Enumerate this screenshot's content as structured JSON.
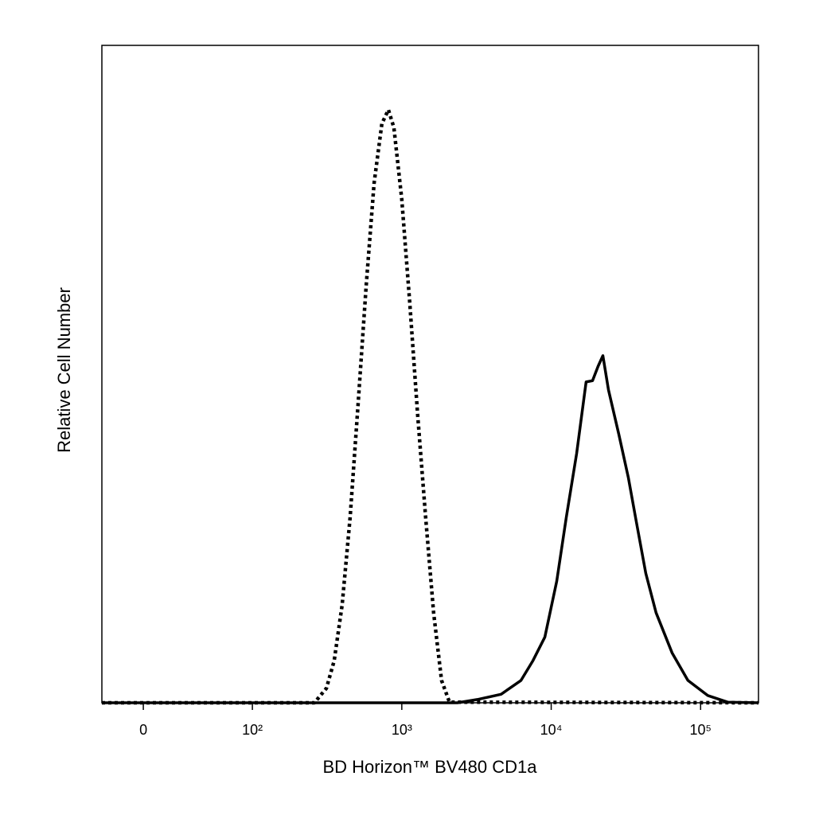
{
  "chart_data": {
    "type": "line",
    "x_label": "BD Horizon™ BV480 CD1a",
    "y_label": "Relative Cell Number",
    "xscale": "biexponential",
    "xlim": [
      -38,
      244000
    ],
    "xticks": [
      0,
      {
        "value": 100,
        "label": "10²"
      },
      {
        "value": 1000,
        "label": "10³"
      },
      {
        "value": 10000,
        "label": "10⁴"
      },
      {
        "value": 100000,
        "label": "10⁵"
      }
    ],
    "ylim": [
      0,
      100
    ],
    "series": [
      {
        "color": "#000000",
        "dash": "dotted",
        "x": [
          -38,
          260,
          313,
          353,
          399,
          451,
          509,
          577,
          652,
          736,
          813,
          885,
          1000,
          1130,
          1276,
          1445,
          1633,
          1845,
          2085,
          244000
        ],
        "values": [
          0,
          0,
          2.2,
          6.4,
          14.9,
          28.2,
          45.2,
          63.3,
          79,
          88.1,
          90.2,
          87.5,
          76.6,
          60.9,
          43.9,
          28.2,
          13.7,
          3.4,
          0.1,
          0
        ]
      },
      {
        "color": "#000000",
        "dash": "solid",
        "x": [
          -38,
          2355,
          3200,
          4620,
          6280,
          7550,
          9070,
          10890,
          12610,
          14800,
          17130,
          18900,
          20600,
          22180,
          24170,
          28320,
          32800,
          37070,
          42950,
          50340,
          64370,
          82220,
          111700,
          151700,
          244000
        ],
        "values": [
          0,
          0,
          0.5,
          1.3,
          3.4,
          6.4,
          10,
          18.5,
          28.2,
          37.9,
          48.8,
          49,
          51.2,
          52.8,
          47.6,
          40.9,
          34.3,
          27.6,
          19.7,
          13.7,
          7.6,
          3.4,
          1.1,
          0.1,
          0
        ]
      }
    ]
  }
}
